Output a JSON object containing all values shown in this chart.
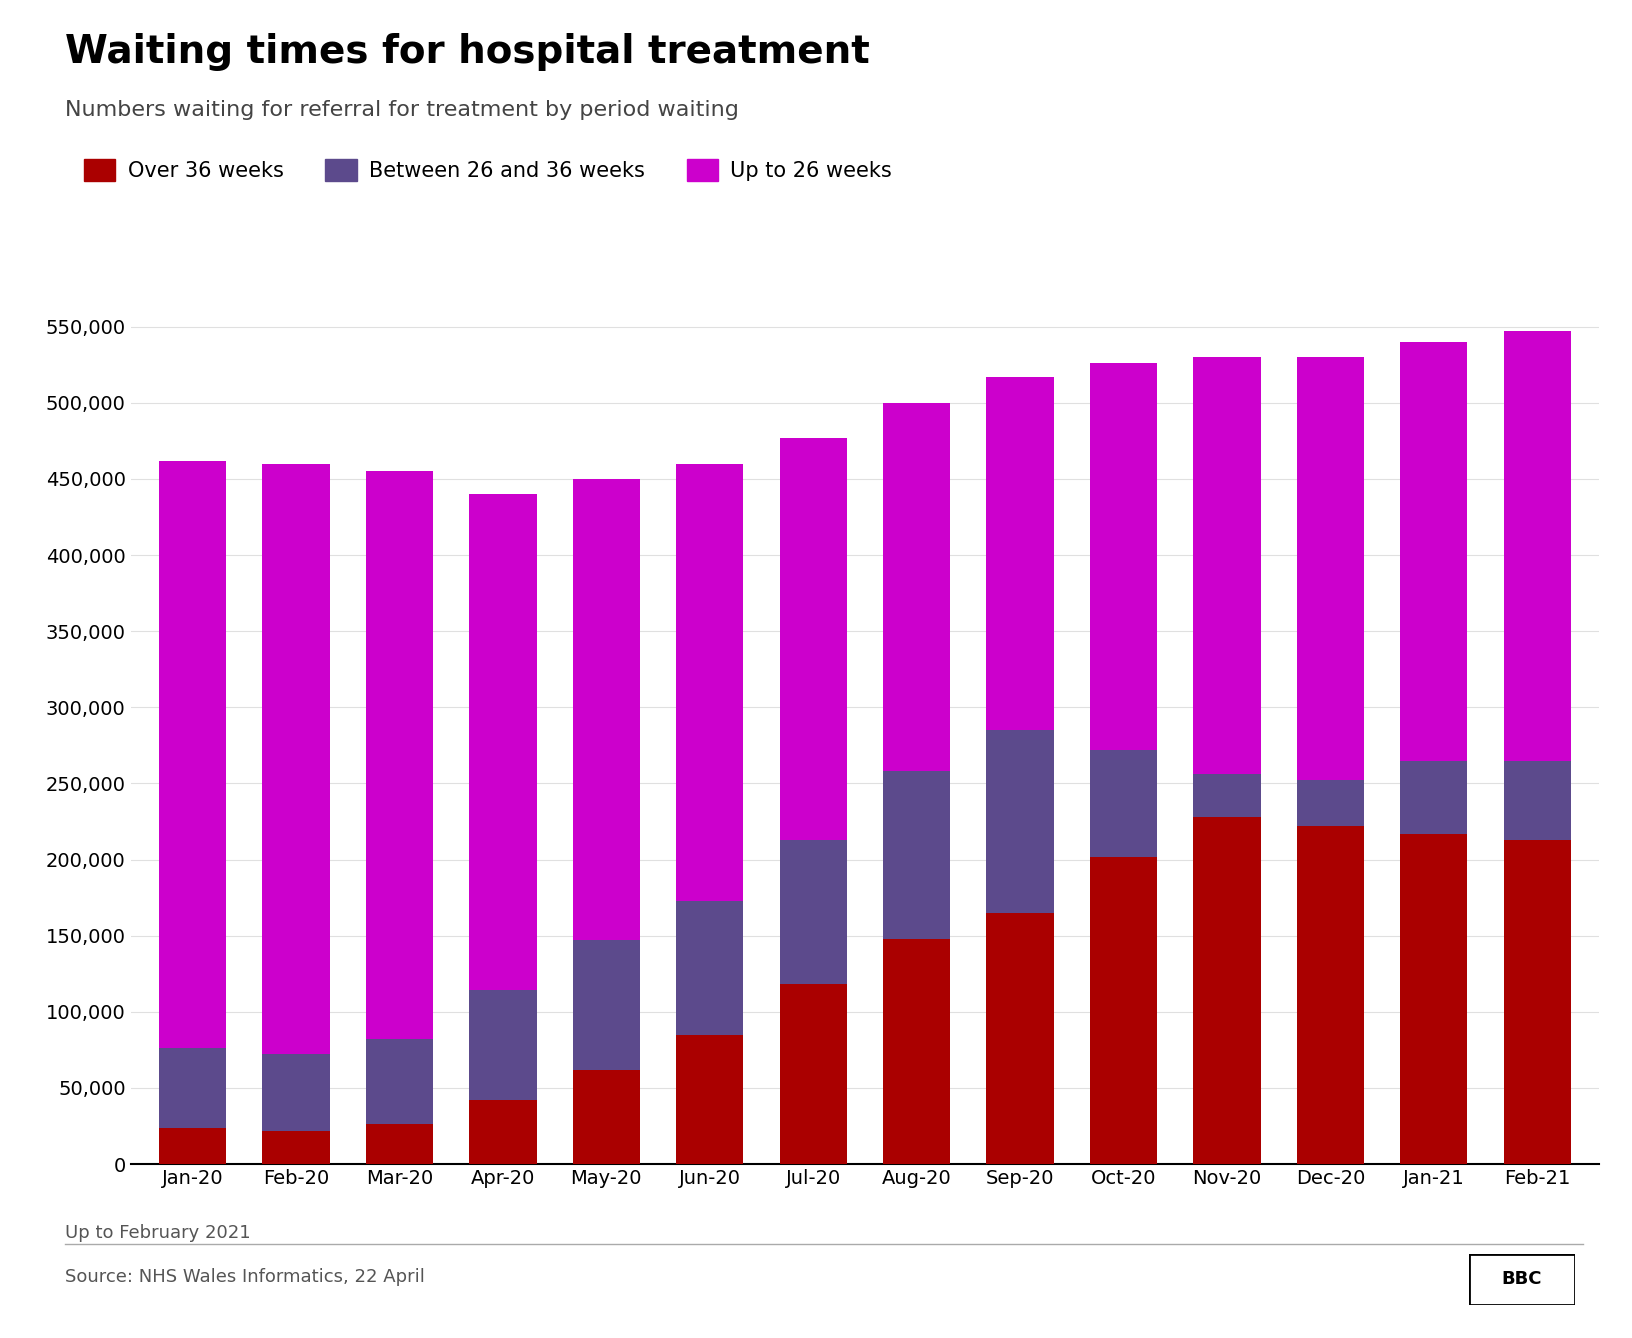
{
  "title": "Waiting times for hospital treatment",
  "subtitle": "Numbers waiting for referral for treatment by period waiting",
  "footer_note": "Up to February 2021",
  "source": "Source: NHS Wales Informatics, 22 April",
  "categories": [
    "Jan-20",
    "Feb-20",
    "Mar-20",
    "Apr-20",
    "May-20",
    "Jun-20",
    "Jul-20",
    "Aug-20",
    "Sep-20",
    "Oct-20",
    "Nov-20",
    "Dec-20",
    "Jan-21",
    "Feb-21"
  ],
  "over_36": [
    24000,
    22000,
    26000,
    42000,
    62000,
    85000,
    118000,
    148000,
    165000,
    202000,
    228000,
    222000,
    217000,
    213000
  ],
  "between_26_36": [
    52000,
    50000,
    56000,
    72000,
    85000,
    88000,
    95000,
    110000,
    120000,
    70000,
    28000,
    30000,
    48000,
    52000
  ],
  "up_to_26": [
    386000,
    388000,
    373000,
    326000,
    303000,
    287000,
    264000,
    242000,
    232000,
    254000,
    274000,
    278000,
    275000,
    282000
  ],
  "color_over_36": "#aa0000",
  "color_between": "#5c4a8c",
  "color_up_to_26": "#cc00cc",
  "ylim": [
    0,
    580000
  ],
  "yticks": [
    0,
    50000,
    100000,
    150000,
    200000,
    250000,
    300000,
    350000,
    400000,
    450000,
    500000,
    550000
  ],
  "background_color": "#ffffff",
  "legend_labels": [
    "Over 36 weeks",
    "Between 26 and 36 weeks",
    "Up to 26 weeks"
  ]
}
